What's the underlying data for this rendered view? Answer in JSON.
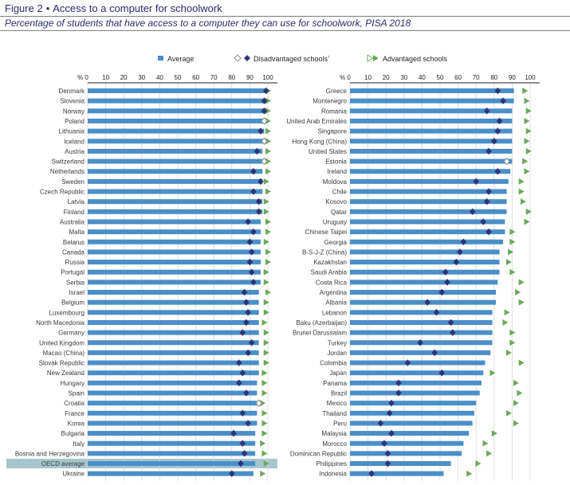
{
  "figure": {
    "title_prefix": "Figure 2",
    "title": "Access to a computer for schoolwork",
    "subtitle": "Percentage of students that have access to a computer they can use for schoolwork, PISA 2018"
  },
  "chart_data": {
    "type": "bar",
    "x_ticks": [
      "% 0",
      "10",
      "20",
      "30",
      "40",
      "50",
      "60",
      "70",
      "80",
      "90",
      "100"
    ],
    "xlim": [
      0,
      100
    ],
    "grid": true,
    "legend_position": "top",
    "series": [
      {
        "name": "Average",
        "marker": "bar",
        "color": "#4a8fc9"
      },
      {
        "name": "Disadvantaged schools",
        "footnote_mark": "¹",
        "marker": "diamond",
        "color": "#2c3575",
        "not_significant_color": "#ffffff"
      },
      {
        "name": "Advantaged schools",
        "marker": "triangle",
        "color": "#6ea85d"
      }
    ],
    "panels": [
      {
        "categories": [
          "Denmark",
          "Slovenia",
          "Norway",
          "Poland",
          "Lithuania",
          "Iceland",
          "Austria",
          "Switzerland",
          "Netherlands",
          "Sweden",
          "Czech Republic",
          "Latvia",
          "Finland",
          "Australia",
          "Malta",
          "Belarus",
          "Canada",
          "Russia",
          "Portugal",
          "Serbia",
          "Israel",
          "Belgium",
          "Luxembourg",
          "North Macedonia",
          "Germany",
          "United Kingdom",
          "Macao (China)",
          "Slovak Republic",
          "New Zealand",
          "Hungary",
          "Spain",
          "Croatia",
          "France",
          "Korea",
          "Bulgaria",
          "Italy",
          "Bosnia and Herzegovina",
          "OECD average",
          "Ukraine"
        ],
        "average": [
          99,
          99,
          99,
          98,
          98,
          98,
          97,
          97,
          97,
          97,
          97,
          97,
          97,
          96,
          96,
          96,
          96,
          96,
          96,
          96,
          95,
          95,
          95,
          95,
          95,
          95,
          95,
          95,
          95,
          94,
          94,
          94,
          94,
          94,
          93,
          93,
          93,
          93,
          92
        ],
        "disadvantaged": [
          99,
          98,
          98,
          98,
          96,
          98,
          94,
          98,
          92,
          96,
          92,
          95,
          95,
          89,
          92,
          90,
          91,
          90,
          91,
          92,
          87,
          88,
          89,
          88,
          86,
          91,
          89,
          84,
          86,
          84,
          88,
          95,
          86,
          89,
          81,
          86,
          87,
          85,
          80
        ],
        "disadvantaged_hollow": [
          false,
          false,
          false,
          true,
          false,
          true,
          false,
          true,
          false,
          false,
          false,
          false,
          false,
          false,
          false,
          false,
          false,
          false,
          false,
          false,
          false,
          false,
          false,
          false,
          false,
          false,
          false,
          false,
          false,
          false,
          false,
          true,
          false,
          false,
          false,
          false,
          false,
          false,
          false
        ],
        "advantaged": [
          100,
          100,
          100,
          100,
          100,
          100,
          100,
          100,
          100,
          99,
          100,
          99,
          99,
          100,
          100,
          99,
          100,
          100,
          99,
          99,
          100,
          99,
          99,
          98,
          99,
          99,
          99,
          99,
          98,
          98,
          98,
          97,
          98,
          98,
          98,
          97,
          98,
          99,
          97
        ],
        "highlight": [
          false,
          false,
          false,
          false,
          false,
          false,
          false,
          false,
          false,
          false,
          false,
          false,
          false,
          false,
          false,
          false,
          false,
          false,
          false,
          false,
          false,
          false,
          false,
          false,
          false,
          false,
          false,
          false,
          false,
          false,
          false,
          false,
          false,
          false,
          false,
          false,
          false,
          true,
          false
        ]
      },
      {
        "categories": [
          "Greece",
          "Montenegro",
          "Romania",
          "United Arab Emirates",
          "Singapore",
          "Hong Kong (China)",
          "United States",
          "Estonia",
          "Ireland",
          "Moldova",
          "Chile",
          "Kosovo",
          "Qatar",
          "Uruguay",
          "Chinese Taipei",
          "Georgia",
          "B-S-J-Z (China)",
          "Kazakhstan",
          "Saudi Arabia",
          "Costa Rica",
          "Argentina",
          "Albania",
          "Lebanon",
          "Baku (Azerbaijan)",
          "Brunei Darussalam",
          "Turkey",
          "Jordan",
          "Colombia",
          "Japan",
          "Panama",
          "Brazil",
          "Mexico",
          "Thailand",
          "Peru",
          "Malaysia",
          "Morocco",
          "Dominican Republic",
          "Philippines",
          "Indonesia"
        ],
        "average": [
          91,
          91,
          90,
          90,
          90,
          90,
          90,
          90,
          89,
          88,
          87,
          87,
          87,
          86,
          86,
          85,
          83,
          83,
          83,
          82,
          81,
          81,
          79,
          79,
          79,
          79,
          78,
          75,
          74,
          73,
          72,
          70,
          69,
          68,
          66,
          63,
          62,
          56,
          52
        ],
        "disadvantaged": [
          82,
          85,
          76,
          83,
          82,
          80,
          77,
          87,
          82,
          70,
          77,
          76,
          68,
          74,
          77,
          63,
          61,
          59,
          53,
          54,
          51,
          43,
          48,
          56,
          57,
          39,
          47,
          32,
          51,
          27,
          27,
          23,
          22,
          17,
          23,
          19,
          21,
          21,
          12
        ],
        "disadvantaged_hollow": [
          false,
          false,
          false,
          false,
          false,
          false,
          false,
          true,
          false,
          false,
          false,
          false,
          false,
          false,
          false,
          false,
          false,
          false,
          false,
          false,
          false,
          false,
          false,
          false,
          false,
          false,
          false,
          false,
          false,
          false,
          false,
          false,
          false,
          false,
          false,
          false,
          false,
          false,
          false
        ],
        "advantaged": [
          97,
          98,
          99,
          98,
          99,
          98,
          99,
          97,
          98,
          95,
          95,
          96,
          99,
          98,
          90,
          90,
          89,
          88,
          90,
          95,
          93,
          95,
          87,
          86,
          90,
          90,
          88,
          95,
          79,
          92,
          94,
          92,
          88,
          92,
          80,
          75,
          77,
          71,
          66
        ],
        "highlight": [
          false,
          false,
          false,
          false,
          false,
          false,
          false,
          false,
          false,
          false,
          false,
          false,
          false,
          false,
          false,
          false,
          false,
          false,
          false,
          false,
          false,
          false,
          false,
          false,
          false,
          false,
          false,
          false,
          false,
          false,
          false,
          false,
          false,
          false,
          false,
          false,
          false,
          false,
          false
        ]
      }
    ]
  }
}
